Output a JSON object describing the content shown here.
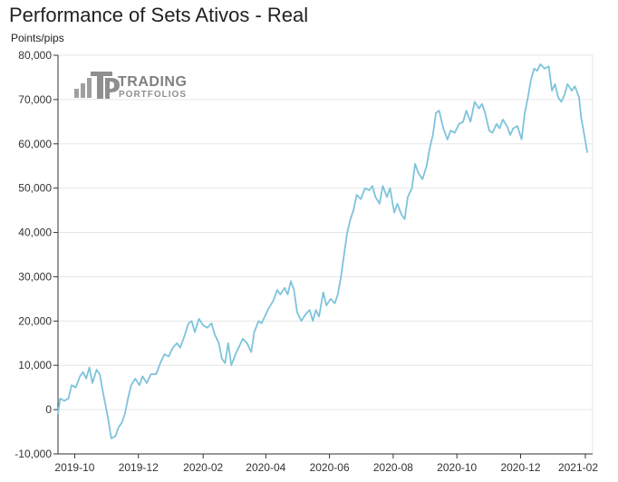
{
  "chart_data": {
    "type": "line",
    "title": "Performance of Sets Ativos - Real",
    "ylabel": "Points/pips",
    "xlabel": "",
    "ylim": [
      -10000,
      80000
    ],
    "yticks": [
      -10000,
      0,
      10000,
      20000,
      30000,
      40000,
      50000,
      60000,
      70000,
      80000
    ],
    "ytick_labels": [
      "-10,000",
      "0",
      "10,000",
      "20,000",
      "30,000",
      "40,000",
      "50,000",
      "60,000",
      "70,000",
      "80,000"
    ],
    "xlim": [
      "2019-09-15",
      "2021-02-08"
    ],
    "xticks": [
      "2019-10-01",
      "2019-12-01",
      "2020-02-01",
      "2020-04-01",
      "2020-06-01",
      "2020-08-01",
      "2020-10-01",
      "2020-12-01",
      "2021-02-01"
    ],
    "xtick_labels": [
      "2019-10",
      "2019-12",
      "2020-02",
      "2020-04",
      "2020-06",
      "2020-08",
      "2020-10",
      "2020-12",
      "2021-02"
    ],
    "grid": "horizontal",
    "line_color": "#7ec3dc",
    "series": [
      {
        "points": [
          [
            "2019-09-15",
            -1000
          ],
          [
            "2019-09-17",
            2500
          ],
          [
            "2019-09-21",
            2000
          ],
          [
            "2019-09-25",
            2500
          ],
          [
            "2019-09-28",
            5500
          ],
          [
            "2019-10-02",
            5000
          ],
          [
            "2019-10-06",
            7500
          ],
          [
            "2019-10-09",
            8500
          ],
          [
            "2019-10-12",
            7000
          ],
          [
            "2019-10-15",
            9500
          ],
          [
            "2019-10-18",
            6000
          ],
          [
            "2019-10-22",
            9000
          ],
          [
            "2019-10-25",
            8000
          ],
          [
            "2019-10-28",
            4000
          ],
          [
            "2019-11-02",
            -2000
          ],
          [
            "2019-11-05",
            -6500
          ],
          [
            "2019-11-09",
            -6000
          ],
          [
            "2019-11-12",
            -4000
          ],
          [
            "2019-11-15",
            -3000
          ],
          [
            "2019-11-18",
            -1000
          ],
          [
            "2019-11-21",
            2500
          ],
          [
            "2019-11-24",
            5500
          ],
          [
            "2019-11-28",
            7000
          ],
          [
            "2019-12-02",
            5500
          ],
          [
            "2019-12-05",
            7500
          ],
          [
            "2019-12-09",
            6000
          ],
          [
            "2019-12-13",
            8000
          ],
          [
            "2019-12-18",
            8000
          ],
          [
            "2019-12-22",
            10500
          ],
          [
            "2019-12-26",
            12500
          ],
          [
            "2019-12-30",
            12000
          ],
          [
            "2020-01-03",
            14000
          ],
          [
            "2020-01-07",
            15000
          ],
          [
            "2020-01-10",
            14000
          ],
          [
            "2020-01-14",
            16500
          ],
          [
            "2020-01-18",
            19500
          ],
          [
            "2020-01-21",
            20000
          ],
          [
            "2020-01-24",
            17500
          ],
          [
            "2020-01-28",
            20500
          ],
          [
            "2020-02-01",
            19000
          ],
          [
            "2020-02-05",
            18500
          ],
          [
            "2020-02-09",
            19500
          ],
          [
            "2020-02-12",
            17000
          ],
          [
            "2020-02-16",
            15000
          ],
          [
            "2020-02-19",
            11500
          ],
          [
            "2020-02-22",
            10500
          ],
          [
            "2020-02-25",
            15000
          ],
          [
            "2020-02-28",
            10000
          ],
          [
            "2020-03-03",
            12500
          ],
          [
            "2020-03-07",
            14500
          ],
          [
            "2020-03-10",
            16000
          ],
          [
            "2020-03-14",
            15000
          ],
          [
            "2020-03-18",
            13000
          ],
          [
            "2020-03-21",
            17500
          ],
          [
            "2020-03-25",
            20000
          ],
          [
            "2020-03-28",
            19500
          ],
          [
            "2020-04-01",
            21500
          ],
          [
            "2020-04-04",
            23000
          ],
          [
            "2020-04-08",
            24500
          ],
          [
            "2020-04-12",
            27000
          ],
          [
            "2020-04-15",
            26000
          ],
          [
            "2020-04-19",
            27500
          ],
          [
            "2020-04-22",
            26000
          ],
          [
            "2020-04-25",
            29000
          ],
          [
            "2020-04-28",
            27000
          ],
          [
            "2020-05-01",
            22000
          ],
          [
            "2020-05-05",
            20000
          ],
          [
            "2020-05-09",
            21500
          ],
          [
            "2020-05-13",
            22500
          ],
          [
            "2020-05-16",
            20000
          ],
          [
            "2020-05-19",
            22500
          ],
          [
            "2020-05-22",
            21000
          ],
          [
            "2020-05-26",
            26500
          ],
          [
            "2020-05-29",
            23500
          ],
          [
            "2020-06-02",
            25000
          ],
          [
            "2020-06-06",
            24000
          ],
          [
            "2020-06-09",
            26000
          ],
          [
            "2020-06-12",
            30000
          ],
          [
            "2020-06-15",
            35000
          ],
          [
            "2020-06-18",
            40000
          ],
          [
            "2020-06-21",
            43000
          ],
          [
            "2020-06-24",
            45000
          ],
          [
            "2020-06-27",
            48500
          ],
          [
            "2020-07-01",
            47500
          ],
          [
            "2020-07-05",
            50000
          ],
          [
            "2020-07-09",
            49500
          ],
          [
            "2020-07-12",
            50500
          ],
          [
            "2020-07-15",
            48000
          ],
          [
            "2020-07-19",
            46500
          ],
          [
            "2020-07-22",
            50500
          ],
          [
            "2020-07-26",
            48000
          ],
          [
            "2020-07-29",
            50000
          ],
          [
            "2020-08-02",
            44500
          ],
          [
            "2020-08-05",
            46500
          ],
          [
            "2020-08-09",
            44000
          ],
          [
            "2020-08-12",
            43000
          ],
          [
            "2020-08-15",
            48000
          ],
          [
            "2020-08-19",
            50000
          ],
          [
            "2020-08-22",
            55500
          ],
          [
            "2020-08-25",
            53500
          ],
          [
            "2020-08-29",
            52000
          ],
          [
            "2020-09-02",
            55000
          ],
          [
            "2020-09-05",
            59000
          ],
          [
            "2020-09-08",
            62000
          ],
          [
            "2020-09-11",
            67000
          ],
          [
            "2020-09-14",
            67500
          ],
          [
            "2020-09-18",
            63500
          ],
          [
            "2020-09-22",
            61000
          ],
          [
            "2020-09-25",
            63000
          ],
          [
            "2020-09-29",
            62500
          ],
          [
            "2020-10-03",
            64500
          ],
          [
            "2020-10-07",
            65000
          ],
          [
            "2020-10-10",
            67500
          ],
          [
            "2020-10-14",
            65000
          ],
          [
            "2020-10-18",
            69500
          ],
          [
            "2020-10-22",
            68000
          ],
          [
            "2020-10-25",
            69000
          ],
          [
            "2020-10-28",
            67000
          ],
          [
            "2020-11-01",
            63000
          ],
          [
            "2020-11-04",
            62500
          ],
          [
            "2020-11-08",
            64500
          ],
          [
            "2020-11-11",
            63500
          ],
          [
            "2020-11-14",
            65500
          ],
          [
            "2020-11-18",
            64000
          ],
          [
            "2020-11-21",
            62000
          ],
          [
            "2020-11-24",
            63500
          ],
          [
            "2020-11-28",
            64000
          ],
          [
            "2020-12-02",
            61000
          ],
          [
            "2020-12-05",
            67000
          ],
          [
            "2020-12-08",
            70500
          ],
          [
            "2020-12-11",
            74500
          ],
          [
            "2020-12-14",
            77000
          ],
          [
            "2020-12-17",
            76500
          ],
          [
            "2020-12-20",
            78000
          ],
          [
            "2020-12-24",
            77000
          ],
          [
            "2020-12-28",
            77500
          ],
          [
            "2020-12-31",
            72000
          ],
          [
            "2021-01-03",
            73500
          ],
          [
            "2021-01-06",
            70500
          ],
          [
            "2021-01-09",
            69500
          ],
          [
            "2021-01-12",
            71000
          ],
          [
            "2021-01-15",
            73500
          ],
          [
            "2021-01-19",
            72000
          ],
          [
            "2021-01-22",
            73000
          ],
          [
            "2021-01-26",
            70500
          ],
          [
            "2021-01-28",
            66000
          ],
          [
            "2021-01-31",
            62000
          ],
          [
            "2021-02-03",
            58000
          ]
        ]
      }
    ]
  },
  "watermark": {
    "line1": "TRADING",
    "line2": "PORTFOLIOS",
    "monogram": "TP"
  }
}
